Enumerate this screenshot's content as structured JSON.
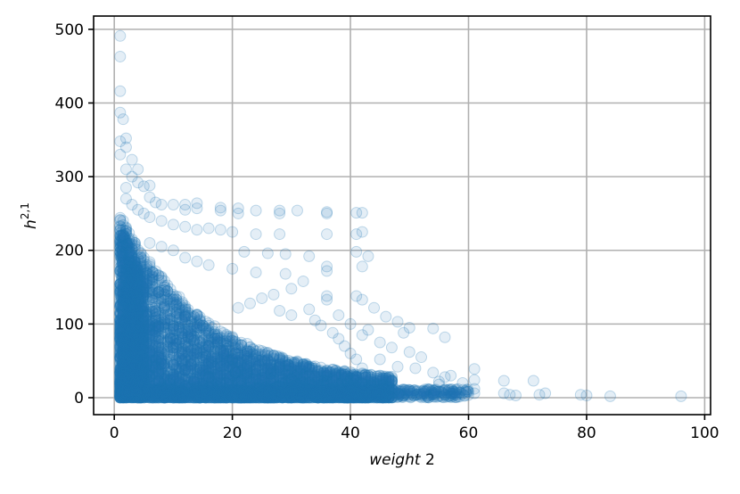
{
  "chart_data": {
    "type": "scatter",
    "xlabel_italic": "weight",
    "xlabel_rest": " 2",
    "ylabel_base": "h",
    "ylabel_sup": "2,1",
    "xlim": [
      -3.5,
      101
    ],
    "ylim": [
      -23,
      518
    ],
    "xticks": [
      0,
      20,
      40,
      60,
      80,
      100
    ],
    "yticks": [
      0,
      100,
      200,
      300,
      400,
      500
    ],
    "grid": true,
    "marker_color": "#1f77b4",
    "marker_alpha": 0.12,
    "series": [
      {
        "points": [
          [
            1,
            491
          ],
          [
            1,
            463
          ],
          [
            1,
            416
          ],
          [
            1,
            387
          ],
          [
            1.5,
            378
          ],
          [
            1,
            348
          ],
          [
            1,
            330
          ],
          [
            2,
            352
          ],
          [
            2,
            340
          ],
          [
            3,
            323
          ],
          [
            2,
            310
          ],
          [
            3,
            300
          ],
          [
            4,
            292
          ],
          [
            4,
            310
          ],
          [
            5,
            287
          ],
          [
            6,
            288
          ],
          [
            6,
            272
          ],
          [
            7,
            265
          ],
          [
            8,
            262
          ],
          [
            10,
            262
          ],
          [
            12,
            262
          ],
          [
            12,
            255
          ],
          [
            14,
            264
          ],
          [
            14,
            257
          ],
          [
            18,
            258
          ],
          [
            18,
            254
          ],
          [
            21,
            257
          ],
          [
            21,
            250
          ],
          [
            24,
            254
          ],
          [
            28,
            254
          ],
          [
            28,
            250
          ],
          [
            31,
            254
          ],
          [
            36,
            252
          ],
          [
            36,
            250
          ],
          [
            41,
            251
          ],
          [
            42,
            251
          ],
          [
            42,
            225
          ],
          [
            41,
            222
          ],
          [
            36,
            222
          ],
          [
            28,
            222
          ],
          [
            24,
            222
          ],
          [
            20,
            225
          ],
          [
            18,
            228
          ],
          [
            16,
            230
          ],
          [
            14,
            228
          ],
          [
            12,
            232
          ],
          [
            10,
            235
          ],
          [
            8,
            240
          ],
          [
            6,
            245
          ],
          [
            5,
            250
          ],
          [
            4,
            255
          ],
          [
            3,
            262
          ],
          [
            2,
            270
          ],
          [
            2,
            285
          ],
          [
            22,
            198
          ],
          [
            26,
            196
          ],
          [
            29,
            195
          ],
          [
            33,
            192
          ],
          [
            41,
            198
          ],
          [
            43,
            192
          ],
          [
            36,
            178
          ],
          [
            42,
            178
          ],
          [
            36,
            172
          ],
          [
            29,
            168
          ],
          [
            24,
            170
          ],
          [
            20,
            175
          ],
          [
            16,
            180
          ],
          [
            14,
            185
          ],
          [
            12,
            190
          ],
          [
            10,
            200
          ],
          [
            8,
            205
          ],
          [
            6,
            210
          ],
          [
            36,
            138
          ],
          [
            36,
            133
          ],
          [
            41,
            138
          ],
          [
            42,
            133
          ],
          [
            44,
            122
          ],
          [
            46,
            110
          ],
          [
            48,
            103
          ],
          [
            50,
            95
          ],
          [
            54,
            94
          ],
          [
            56,
            82
          ],
          [
            49,
            88
          ],
          [
            43,
            92
          ],
          [
            32,
            158
          ],
          [
            30,
            148
          ],
          [
            27,
            140
          ],
          [
            25,
            135
          ],
          [
            23,
            128
          ],
          [
            21,
            122
          ],
          [
            33,
            120
          ],
          [
            38,
            112
          ],
          [
            40,
            100
          ],
          [
            42,
            85
          ],
          [
            45,
            75
          ],
          [
            47,
            68
          ],
          [
            50,
            62
          ],
          [
            52,
            55
          ],
          [
            45,
            52
          ],
          [
            48,
            42
          ],
          [
            51,
            40
          ],
          [
            54,
            34
          ],
          [
            56,
            28
          ],
          [
            55,
            22
          ],
          [
            57,
            30
          ],
          [
            55,
            18
          ],
          [
            59,
            20
          ],
          [
            61,
            39
          ],
          [
            61,
            24
          ],
          [
            61,
            12
          ],
          [
            60,
            8
          ],
          [
            61,
            6
          ],
          [
            66,
            23
          ],
          [
            66,
            6
          ],
          [
            67,
            4
          ],
          [
            68,
            3
          ],
          [
            71,
            23
          ],
          [
            72,
            4
          ],
          [
            73,
            6
          ],
          [
            79,
            4
          ],
          [
            80,
            3
          ],
          [
            84,
            2
          ],
          [
            96,
            2
          ],
          [
            50,
            8
          ],
          [
            52,
            5
          ],
          [
            53,
            3
          ],
          [
            54,
            10
          ],
          [
            56,
            4
          ],
          [
            58,
            6
          ],
          [
            49,
            3
          ],
          [
            47,
            6
          ],
          [
            45,
            10
          ],
          [
            46,
            3
          ],
          [
            44,
            20
          ],
          [
            43,
            30
          ],
          [
            42,
            40
          ],
          [
            41,
            52
          ],
          [
            40,
            60
          ],
          [
            39,
            70
          ],
          [
            38,
            80
          ],
          [
            37,
            88
          ],
          [
            35,
            98
          ],
          [
            34,
            105
          ],
          [
            30,
            112
          ],
          [
            28,
            118
          ]
        ]
      }
    ]
  }
}
